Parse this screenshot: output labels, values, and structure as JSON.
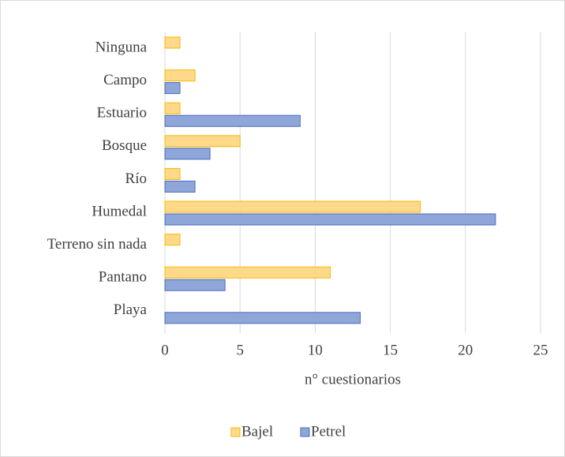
{
  "chart_data": {
    "type": "bar",
    "orientation": "horizontal",
    "categories": [
      "Ninguna",
      "Campo",
      "Estuario",
      "Bosque",
      "Río",
      "Humedal",
      "Terreno sin nada",
      "Pantano",
      "Playa"
    ],
    "series": [
      {
        "name": "Bajel",
        "color": "#ffd98a",
        "values": [
          1,
          2,
          1,
          5,
          1,
          17,
          1,
          11,
          0
        ]
      },
      {
        "name": "Petrel",
        "color": "#8fa6d9",
        "values": [
          0,
          1,
          9,
          3,
          2,
          22,
          0,
          4,
          13
        ]
      }
    ],
    "xlabel": "n° cuestionarios",
    "xlim": [
      0,
      25
    ],
    "xticks": [
      0,
      5,
      10,
      15,
      20,
      25
    ],
    "grid": true,
    "legend": "bottom"
  }
}
